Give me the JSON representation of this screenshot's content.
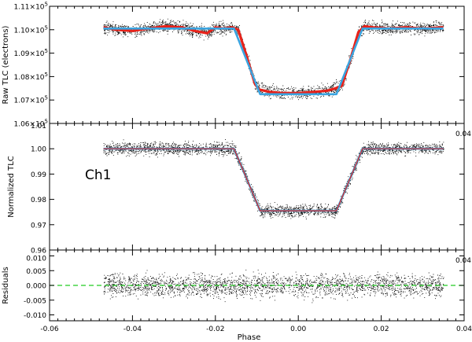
{
  "chart_data": [
    {
      "type": "scatter",
      "panel": "raw",
      "ylabel": "Raw TLC (electrons)",
      "xlim": [
        -0.06,
        0.04
      ],
      "ylim": [
        106000,
        111000
      ],
      "yticks": [
        {
          "value": 106000,
          "mant": "1.06×10",
          "exp": "5"
        },
        {
          "value": 107000,
          "mant": "1.07×10",
          "exp": "5"
        },
        {
          "value": 108000,
          "mant": "1.08×10",
          "exp": "5"
        },
        {
          "value": 109000,
          "mant": "1.09×10",
          "exp": "5"
        },
        {
          "value": 110000,
          "mant": "1.10×10",
          "exp": "5"
        },
        {
          "value": 111000,
          "mant": "1.11×10",
          "exp": "5"
        }
      ],
      "series": [
        {
          "role": "data",
          "color": "#000000",
          "x_range": [
            -0.047,
            0.035
          ],
          "scatter": 230
        },
        {
          "role": "binned",
          "color": "#e8221a",
          "x": [
            -0.047,
            -0.044,
            -0.04,
            -0.036,
            -0.032,
            -0.028,
            -0.025,
            -0.022,
            -0.02,
            -0.018,
            -0.016,
            -0.0145,
            -0.0125,
            -0.0105,
            -0.0095,
            -0.007,
            -0.004,
            0.0,
            0.004,
            0.007,
            0.009,
            0.0105,
            0.0125,
            0.0145,
            0.016,
            0.018,
            0.022,
            0.026,
            0.03,
            0.035
          ],
          "y": [
            110100,
            110000,
            109950,
            110050,
            110150,
            110100,
            109950,
            109850,
            110100,
            110050,
            110100,
            110000,
            108900,
            107700,
            107450,
            107350,
            107300,
            107300,
            107350,
            107400,
            107500,
            107600,
            108700,
            109900,
            110150,
            110100,
            110050,
            110100,
            110050,
            110100
          ]
        },
        {
          "role": "model",
          "color": "#3aa4e0",
          "x": [
            -0.047,
            -0.0155,
            -0.0092,
            0.0092,
            0.0155,
            0.035
          ],
          "y": [
            110050,
            110050,
            107250,
            107250,
            110050,
            110050
          ]
        }
      ]
    },
    {
      "type": "scatter",
      "panel": "normalized",
      "ylabel": "Normalized TLC",
      "annotation": "Ch1",
      "corner_label": "0.04",
      "xlim": [
        -0.06,
        0.04
      ],
      "ylim": [
        0.96,
        1.01
      ],
      "yticks": [
        {
          "value": 0.96,
          "label": "0.96"
        },
        {
          "value": 0.97,
          "label": "0.97"
        },
        {
          "value": 0.98,
          "label": "0.98"
        },
        {
          "value": 0.99,
          "label": "0.99"
        },
        {
          "value": 1.0,
          "label": "1.00"
        },
        {
          "value": 1.01,
          "label": "1.01"
        }
      ],
      "series": [
        {
          "role": "data",
          "color": "#000000",
          "x_range": [
            -0.047,
            0.035
          ],
          "scatter": 0.0022
        },
        {
          "role": "model",
          "color": "#3aa4e0",
          "x": [
            -0.047,
            -0.0155,
            -0.0092,
            0.0092,
            0.0155,
            0.035
          ],
          "y": [
            1.0,
            1.0,
            0.9755,
            0.9755,
            1.0,
            1.0
          ]
        },
        {
          "role": "fit",
          "color": "#e8221a",
          "x": [
            -0.047,
            -0.0155,
            -0.0092,
            0.0092,
            0.0155,
            0.035
          ],
          "y": [
            1.0,
            1.0,
            0.9755,
            0.9755,
            1.0,
            1.0
          ]
        }
      ]
    },
    {
      "type": "scatter",
      "panel": "residuals",
      "ylabel": "Residuals",
      "corner_label": "0.04",
      "xlabel": "Phase",
      "xlim": [
        -0.06,
        0.04
      ],
      "ylim": [
        -0.012,
        0.012
      ],
      "yticks": [
        {
          "value": -0.01,
          "label": "-0.010"
        },
        {
          "value": -0.005,
          "label": "-0.005"
        },
        {
          "value": 0.0,
          "label": "0.000"
        },
        {
          "value": 0.005,
          "label": "0.005"
        },
        {
          "value": 0.01,
          "label": "0.010"
        }
      ],
      "xticks": [
        {
          "value": -0.06,
          "label": "-0.06"
        },
        {
          "value": -0.04,
          "label": "-0.04"
        },
        {
          "value": -0.02,
          "label": "-0.02"
        },
        {
          "value": 0.0,
          "label": "0.00"
        },
        {
          "value": 0.02,
          "label": "0.02"
        },
        {
          "value": 0.04,
          "label": "0.04"
        }
      ],
      "series": [
        {
          "role": "data",
          "color": "#000000",
          "x_range": [
            -0.047,
            0.035
          ],
          "scatter": 0.0035
        },
        {
          "role": "zero",
          "color": "#22cc22",
          "dashed": true,
          "y": 0.0
        }
      ]
    }
  ]
}
